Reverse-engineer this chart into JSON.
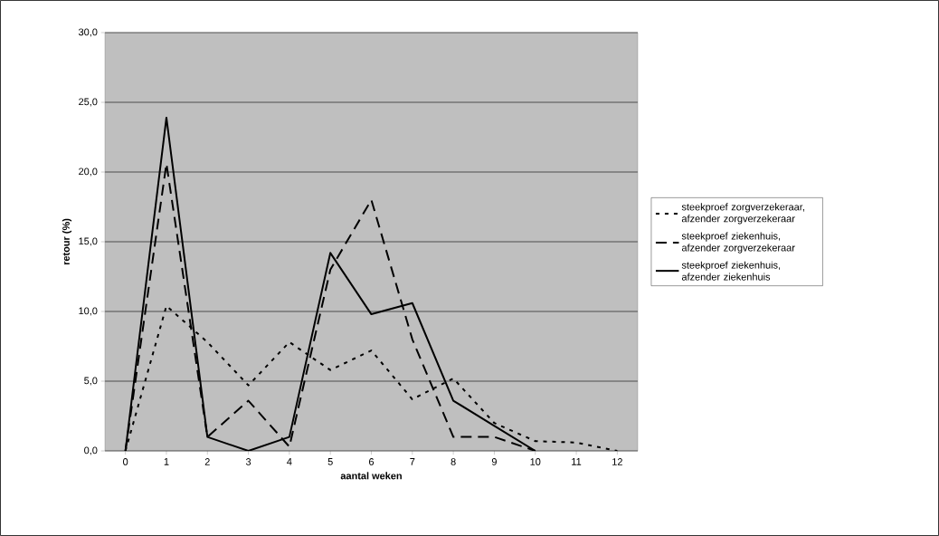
{
  "chart_data": {
    "type": "line",
    "xlabel": "aantal weken",
    "ylabel": "retour (%)",
    "categories": [
      "0",
      "1",
      "2",
      "3",
      "4",
      "5",
      "6",
      "7",
      "8",
      "9",
      "10",
      "11",
      "12"
    ],
    "series": [
      {
        "name": "steekproef zorgverzekeraar, afzender zorgverzekeraar",
        "color": "#000000",
        "line_style": "dotted",
        "values": [
          0,
          10.4,
          7.8,
          4.7,
          7.8,
          5.8,
          7.2,
          3.7,
          5.2,
          2.0,
          0.7,
          0.6,
          0
        ]
      },
      {
        "name": "steekproef ziekenhuis, afzender zorgverzekeraar",
        "color": "#000000",
        "line_style": "dashed",
        "values": [
          0,
          20.6,
          1.0,
          3.6,
          0.3,
          13.0,
          18.0,
          8.0,
          1.0,
          1.0,
          0,
          null,
          null
        ]
      },
      {
        "name": "steekproef ziekenhuis, afzender ziekenhuis",
        "color": "#000000",
        "line_style": "solid",
        "values": [
          0,
          23.9,
          1.0,
          0,
          1.0,
          14.2,
          9.8,
          10.6,
          3.6,
          1.8,
          0,
          null,
          null
        ]
      }
    ],
    "ylim": [
      0,
      30
    ],
    "yticks": [
      {
        "value": 0,
        "label": "0,0"
      },
      {
        "value": 5,
        "label": "5,0"
      },
      {
        "value": 10,
        "label": "10,0"
      },
      {
        "value": 15,
        "label": "15,0"
      },
      {
        "value": 20,
        "label": "20,0"
      },
      {
        "value": 25,
        "label": "25,0"
      },
      {
        "value": 30,
        "label": "30,0"
      }
    ],
    "grid": "y",
    "legend": "right",
    "marker": "none"
  }
}
